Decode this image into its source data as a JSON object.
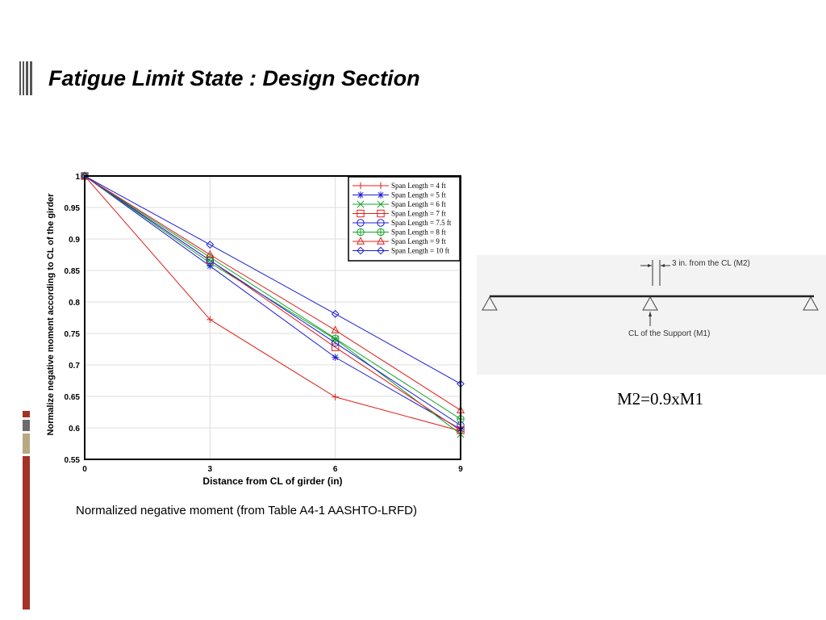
{
  "slide": {
    "title": "Fatigue Limit State : Design Section",
    "caption": "Normalized negative moment (from Table A4-1 AASHTO-LRFD)",
    "formula": "M2=0.9xM1",
    "accent_colors": {
      "red": "#a33327",
      "gray": "#6b6b6b",
      "tan": "#b8a882"
    }
  },
  "diagram": {
    "label_m2": "3 in. from the CL (M2)",
    "label_m1": "CL of the Support (M1)"
  },
  "chart_data": {
    "type": "line",
    "xlabel": "Distance from CL of girder (in)",
    "ylabel": "Normalize negative moment according to CL of the girder",
    "x": [
      0,
      3,
      6,
      9
    ],
    "xticks": [
      "0",
      "3",
      "6",
      "9"
    ],
    "yticks": [
      "0.55",
      "0.6",
      "0.65",
      "0.7",
      "0.75",
      "0.8",
      "0.85",
      "0.9",
      "0.95",
      "1"
    ],
    "xlim": [
      0,
      9
    ],
    "ylim": [
      0.55,
      1.0
    ],
    "grid": true,
    "legend_position": "top-right",
    "series": [
      {
        "name": "Span Length = 4 ft",
        "values": [
          1.0,
          0.772,
          0.649,
          0.595
        ],
        "color": "#e0201b",
        "marker": "plus"
      },
      {
        "name": "Span Length = 5 ft",
        "values": [
          1.0,
          0.857,
          0.712,
          0.598
        ],
        "color": "#1c1cd6",
        "marker": "star"
      },
      {
        "name": "Span Length = 6 ft",
        "values": [
          1.0,
          0.862,
          0.741,
          0.59
        ],
        "color": "#14a32a",
        "marker": "x"
      },
      {
        "name": "Span Length = 7 ft",
        "values": [
          1.0,
          0.866,
          0.728,
          0.596
        ],
        "color": "#e0201b",
        "marker": "square"
      },
      {
        "name": "Span Length = 7.5 ft",
        "values": [
          1.0,
          0.866,
          0.735,
          0.604
        ],
        "color": "#1c1cd6",
        "marker": "circle"
      },
      {
        "name": "Span Length = 8 ft",
        "values": [
          1.0,
          0.871,
          0.742,
          0.614
        ],
        "color": "#14a32a",
        "marker": "circleplus"
      },
      {
        "name": "Span Length = 9 ft",
        "values": [
          1.0,
          0.875,
          0.755,
          0.628
        ],
        "color": "#e0201b",
        "marker": "triangle"
      },
      {
        "name": "Span Length = 10 ft",
        "values": [
          1.0,
          0.891,
          0.781,
          0.67
        ],
        "color": "#1c1cd6",
        "marker": "diamond"
      }
    ]
  }
}
